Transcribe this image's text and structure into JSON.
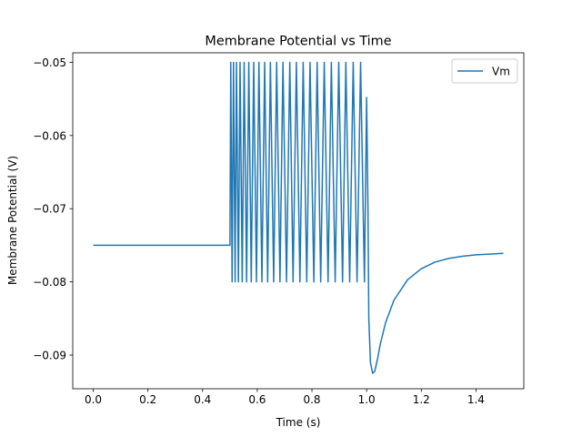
{
  "chart_data": {
    "type": "line",
    "title": "Membrane Potential vs Time",
    "xlabel": "Time (s)",
    "ylabel": "Membrane Potential (V)",
    "xlim": [
      -0.075,
      1.575
    ],
    "ylim": [
      -0.0946,
      -0.0487
    ],
    "x_ticks": [
      0.0,
      0.2,
      0.4,
      0.6,
      0.8,
      1.0,
      1.2,
      1.4
    ],
    "x_tick_labels": [
      "0.0",
      "0.2",
      "0.4",
      "0.6",
      "0.8",
      "1.0",
      "1.2",
      "1.4"
    ],
    "y_ticks": [
      -0.09,
      -0.08,
      -0.07,
      -0.06,
      -0.05
    ],
    "y_tick_labels": [
      "−0.09",
      "−0.08",
      "−0.07",
      "−0.06",
      "−0.05"
    ],
    "grid": false,
    "legend_position": "top-right",
    "series": [
      {
        "name": "Vm",
        "color": "#1f77b4",
        "x": [
          0.0,
          0.5,
          0.503,
          0.508,
          0.513,
          0.519,
          0.524,
          0.531,
          0.537,
          0.545,
          0.552,
          0.561,
          0.569,
          0.578,
          0.587,
          0.597,
          0.606,
          0.617,
          0.627,
          0.638,
          0.648,
          0.66,
          0.671,
          0.683,
          0.694,
          0.707,
          0.719,
          0.731,
          0.743,
          0.756,
          0.768,
          0.781,
          0.793,
          0.807,
          0.819,
          0.832,
          0.845,
          0.859,
          0.871,
          0.885,
          0.898,
          0.912,
          0.924,
          0.938,
          0.951,
          0.965,
          0.978,
          0.992,
          1.0,
          1.005,
          1.008,
          1.014,
          1.022,
          1.03,
          1.04,
          1.05,
          1.07,
          1.1,
          1.15,
          1.2,
          1.25,
          1.3,
          1.35,
          1.4,
          1.45,
          1.5
        ],
        "y": [
          -0.075,
          -0.075,
          -0.05,
          -0.08,
          -0.05,
          -0.08,
          -0.05,
          -0.08,
          -0.05,
          -0.08,
          -0.05,
          -0.08,
          -0.05,
          -0.08,
          -0.05,
          -0.08,
          -0.05,
          -0.08,
          -0.05,
          -0.08,
          -0.05,
          -0.08,
          -0.05,
          -0.08,
          -0.05,
          -0.08,
          -0.05,
          -0.08,
          -0.05,
          -0.08,
          -0.05,
          -0.08,
          -0.05,
          -0.08,
          -0.05,
          -0.08,
          -0.05,
          -0.08,
          -0.05,
          -0.08,
          -0.05,
          -0.08,
          -0.05,
          -0.08,
          -0.05,
          -0.08,
          -0.05,
          -0.08,
          -0.0548,
          -0.07,
          -0.085,
          -0.091,
          -0.0925,
          -0.0922,
          -0.0905,
          -0.0885,
          -0.0855,
          -0.0825,
          -0.0797,
          -0.0782,
          -0.0773,
          -0.0768,
          -0.0765,
          -0.0763,
          -0.0762,
          -0.0761
        ]
      }
    ]
  }
}
